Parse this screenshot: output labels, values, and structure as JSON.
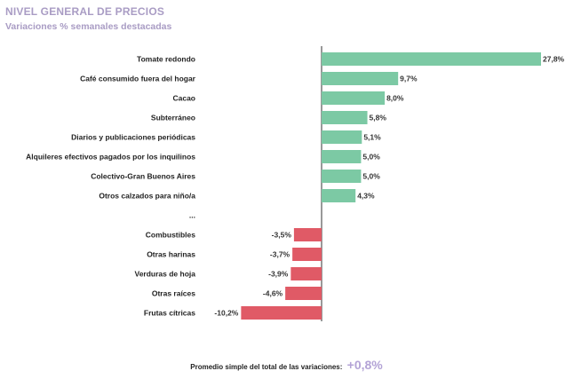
{
  "chart_data": {
    "type": "bar",
    "orientation": "horizontal",
    "title": "NIVEL GENERAL DE PRECIOS",
    "subtitle": "Variaciones % semanales destacadas",
    "categories": [
      "Tomate redondo",
      "Café consumido fuera del hogar",
      "Cacao",
      "Subterráneo",
      "Diarios y publicaciones periódicas",
      "Alquileres efectivos pagados por los inquilinos",
      "Colectivo-Gran Buenos Aires",
      "Otros calzados para niño/a",
      "...",
      "Combustibles",
      "Otras harinas",
      "Verduras de hoja",
      "Otras raíces",
      "Frutas cítricas"
    ],
    "values": [
      27.8,
      9.7,
      8.0,
      5.8,
      5.1,
      5.0,
      5.0,
      4.3,
      null,
      -3.5,
      -3.7,
      -3.9,
      -4.6,
      -10.2
    ],
    "value_labels": [
      "27,8%",
      "9,7%",
      "8,0%",
      "5,8%",
      "5,1%",
      "5,0%",
      "5,0%",
      "4,3%",
      "",
      "-3,5%",
      "-3,7%",
      "-3,9%",
      "-4,6%",
      "-10,2%"
    ],
    "positive_color": "#7cc9a4",
    "negative_color": "#e05a66",
    "xlim": [
      -10.2,
      27.8
    ],
    "grid": false,
    "legend": "none"
  },
  "footer": {
    "label": "Promedio simple del total de las variaciones:",
    "value": "+0,8%"
  }
}
